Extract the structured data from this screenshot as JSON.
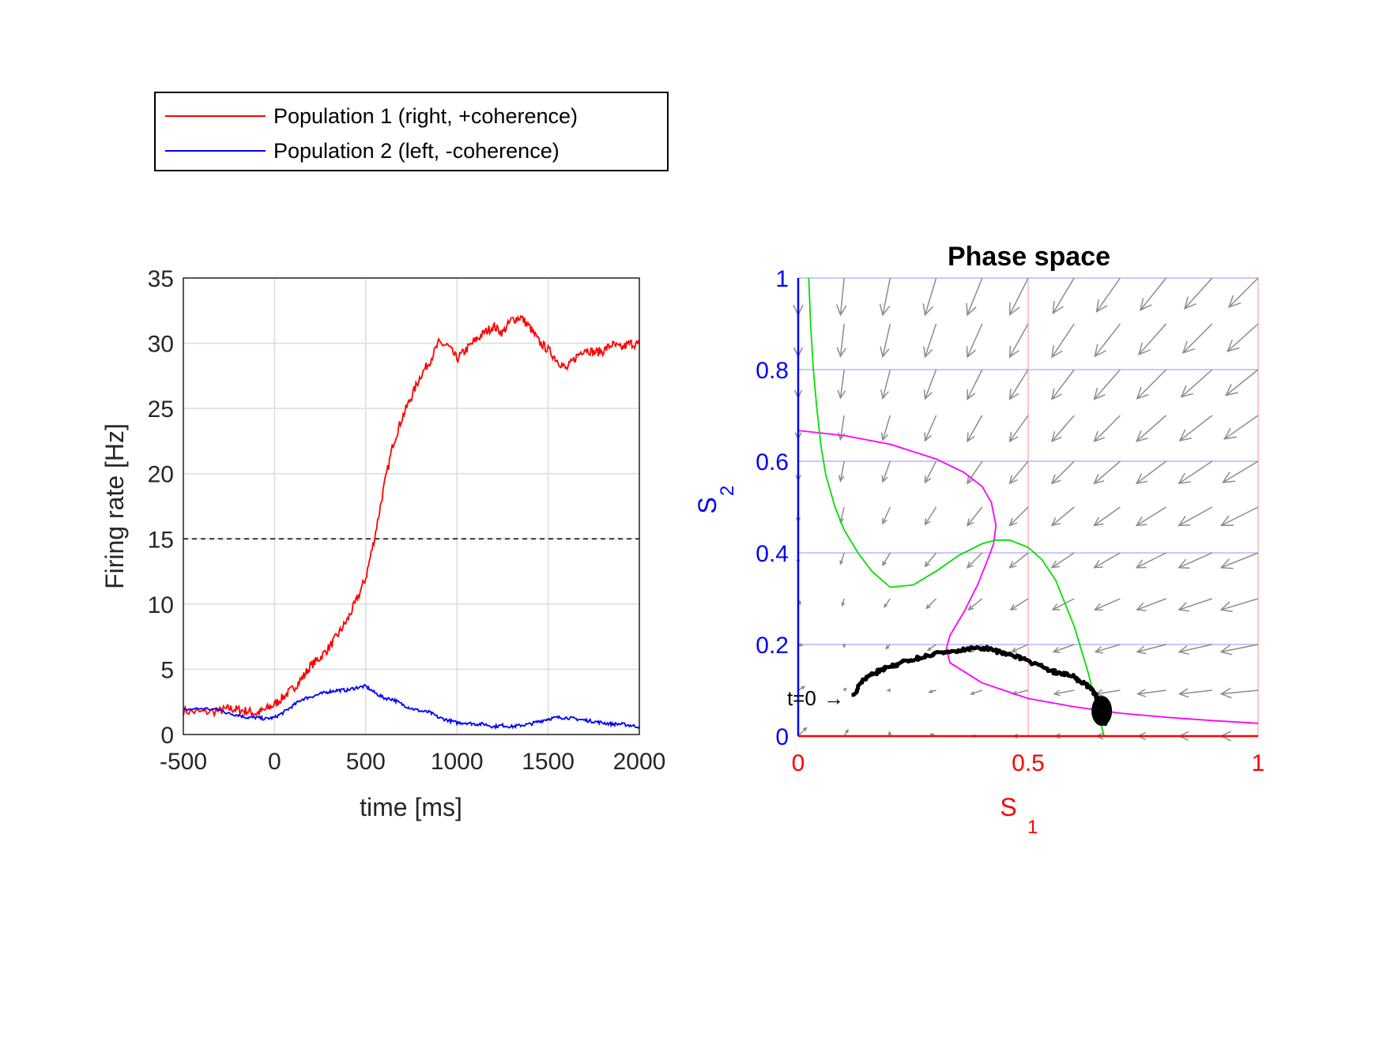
{
  "colors": {
    "pop1": "#ff0000",
    "pop2": "#0000ff",
    "threshold": "#000000",
    "nullcline_s1": "#ff00ff",
    "nullcline_s2": "#00e000",
    "trajectory": "#000000",
    "vector_field": "#8c8c8c",
    "grid_s1": "#ffc8c8",
    "grid_s2": "#c8c8ff"
  },
  "legend": {
    "items": [
      {
        "label": "Population 1 (right, +coherence)",
        "color": "#ff0000"
      },
      {
        "label": "Population 2 (left, -coherence)",
        "color": "#0000ff"
      }
    ]
  },
  "chart_data": [
    {
      "type": "line",
      "title": "",
      "xlabel": "time [ms]",
      "ylabel": "Firing rate [Hz]",
      "xlim": [
        -500,
        2000
      ],
      "ylim": [
        0,
        35
      ],
      "xticks": [
        "-500",
        "0",
        "500",
        "1000",
        "1500",
        "2000"
      ],
      "yticks": [
        "0",
        "5",
        "10",
        "15",
        "20",
        "25",
        "30",
        "35"
      ],
      "grid": true,
      "threshold": 15,
      "series": [
        {
          "name": "Population 1 (right, +coherence)",
          "color": "#ff0000",
          "x": [
            -500,
            -400,
            -300,
            -250,
            -200,
            -150,
            -100,
            -50,
            0,
            50,
            100,
            150,
            200,
            250,
            300,
            350,
            400,
            450,
            500,
            550,
            600,
            650,
            700,
            750,
            800,
            850,
            900,
            950,
            1000,
            1050,
            1100,
            1150,
            1200,
            1250,
            1300,
            1350,
            1400,
            1450,
            1500,
            1550,
            1600,
            1650,
            1700,
            1750,
            1800,
            1850,
            1900,
            1950,
            2000
          ],
          "values": [
            1.8,
            1.7,
            1.8,
            2.0,
            1.9,
            1.8,
            1.6,
            1.9,
            2.3,
            2.9,
            3.5,
            4.3,
            5.3,
            5.9,
            6.7,
            7.7,
            8.8,
            10.3,
            12.0,
            15.2,
            19.0,
            22.3,
            24.3,
            25.9,
            27.5,
            28.6,
            30.0,
            29.8,
            28.8,
            29.5,
            30.2,
            30.8,
            31.3,
            30.8,
            31.8,
            32.0,
            31.2,
            30.1,
            29.5,
            28.7,
            28.0,
            28.9,
            29.6,
            29.3,
            29.4,
            29.9,
            29.6,
            30.0,
            29.9
          ]
        },
        {
          "name": "Population 2 (left, -coherence)",
          "color": "#0000ff",
          "x": [
            -500,
            -400,
            -300,
            -250,
            -200,
            -150,
            -100,
            -50,
            0,
            50,
            100,
            150,
            200,
            250,
            300,
            350,
            400,
            450,
            500,
            550,
            600,
            650,
            700,
            750,
            800,
            850,
            900,
            950,
            1000,
            1050,
            1100,
            1150,
            1200,
            1250,
            1300,
            1350,
            1400,
            1450,
            1500,
            1550,
            1600,
            1650,
            1700,
            1750,
            1800,
            1850,
            1900,
            1950,
            2000
          ],
          "values": [
            1.9,
            2.0,
            1.9,
            1.6,
            1.5,
            1.3,
            1.3,
            1.2,
            1.3,
            1.7,
            2.2,
            2.7,
            2.9,
            3.1,
            3.3,
            3.4,
            3.4,
            3.6,
            3.7,
            3.2,
            2.8,
            2.7,
            2.3,
            2.0,
            1.8,
            1.7,
            1.3,
            1.1,
            0.9,
            0.9,
            0.8,
            0.8,
            0.6,
            0.7,
            0.6,
            0.7,
            0.8,
            1.0,
            1.2,
            1.3,
            1.3,
            1.2,
            1.1,
            1.0,
            0.9,
            0.8,
            0.8,
            0.7,
            0.6
          ]
        }
      ]
    },
    {
      "type": "line",
      "title": "Phase space",
      "xlabel": "S",
      "xlabel_sub": "1",
      "ylabel": "S",
      "ylabel_sub": "2",
      "xlim": [
        0,
        1
      ],
      "ylim": [
        0,
        1
      ],
      "xticks": [
        "0",
        "0.5",
        "1"
      ],
      "yticks": [
        "0",
        "0.2",
        "0.4",
        "0.6",
        "0.8",
        "1"
      ],
      "grid": true,
      "annotation": "t=0",
      "series": [
        {
          "name": "",
          "color": "#ff00ff",
          "x": [
            0.0,
            0.1,
            0.2,
            0.3,
            0.36,
            0.4,
            0.42,
            0.43,
            0.425,
            0.41,
            0.39,
            0.36,
            0.33,
            0.322,
            0.33,
            0.4,
            0.5,
            0.6,
            0.7,
            0.8,
            0.9,
            1.0
          ],
          "values": [
            0.667,
            0.656,
            0.637,
            0.605,
            0.576,
            0.545,
            0.51,
            0.46,
            0.42,
            0.38,
            0.33,
            0.27,
            0.22,
            0.19,
            0.16,
            0.116,
            0.082,
            0.064,
            0.05,
            0.041,
            0.034,
            0.028
          ]
        },
        {
          "name": "",
          "color": "#00e000",
          "x": [
            0.023,
            0.027,
            0.033,
            0.04,
            0.05,
            0.06,
            0.08,
            0.1,
            0.13,
            0.16,
            0.2,
            0.25,
            0.3,
            0.35,
            0.4,
            0.43,
            0.46,
            0.5,
            0.53,
            0.56,
            0.6,
            0.63,
            0.65,
            0.665
          ],
          "values": [
            1.0,
            0.9,
            0.8,
            0.72,
            0.63,
            0.57,
            0.5,
            0.45,
            0.4,
            0.36,
            0.325,
            0.33,
            0.36,
            0.395,
            0.42,
            0.428,
            0.428,
            0.412,
            0.385,
            0.34,
            0.24,
            0.14,
            0.06,
            0.0
          ]
        },
        {
          "name": "",
          "color": "#000000",
          "x": [
            0.12,
            0.14,
            0.16,
            0.18,
            0.2,
            0.22,
            0.25,
            0.28,
            0.31,
            0.34,
            0.37,
            0.4,
            0.43,
            0.46,
            0.5,
            0.54,
            0.57,
            0.6,
            0.62,
            0.64,
            0.65,
            0.66,
            0.67,
            0.655,
            0.665,
            0.66
          ],
          "values": [
            0.09,
            0.12,
            0.135,
            0.145,
            0.152,
            0.158,
            0.167,
            0.175,
            0.183,
            0.185,
            0.19,
            0.193,
            0.185,
            0.178,
            0.165,
            0.145,
            0.138,
            0.13,
            0.115,
            0.1,
            0.085,
            0.07,
            0.05,
            0.04,
            0.03,
            0.06
          ]
        }
      ]
    }
  ]
}
